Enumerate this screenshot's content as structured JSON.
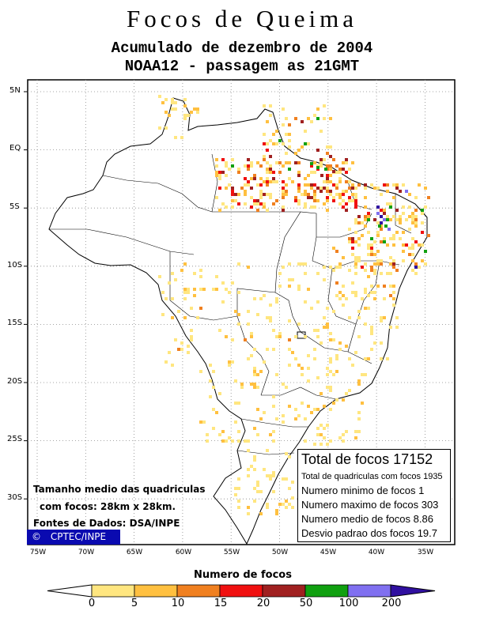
{
  "title": "Focos de Queima",
  "subtitle": "Acumulado de dezembro de 2004",
  "subtitle2": "NOAA12 - passagem as 21GMT",
  "lat_labels": [
    "5N",
    "EQ",
    "5S",
    "10S",
    "15S",
    "20S",
    "25S",
    "30S"
  ],
  "lon_labels": [
    "75W",
    "70W",
    "65W",
    "60W",
    "55W",
    "50W",
    "45W",
    "40W",
    "35W"
  ],
  "stats": {
    "total": "Total de focos 17152",
    "quadriculas": "Total de quadriculas com focos 1935",
    "minimo": "Numero minimo de focos 1",
    "maximo": "Numero maximo de focos 303",
    "medio": "Numero medio de focos 8.86",
    "desvio": "Desvio padrao dos focos 19.7"
  },
  "notes": {
    "tamanho1": "Tamanho medio das quadriculas",
    "tamanho2": "com focos: 28km x 28km.",
    "fontes": "Fontes de Dados: DSA/INPE",
    "credit": "CPTEC/INPE"
  },
  "legend": {
    "title": "Numero de focos",
    "labels": [
      "0",
      "5",
      "10",
      "15",
      "20",
      "50",
      "100",
      "200"
    ],
    "colors": [
      "#ffe680",
      "#ffc040",
      "#f08020",
      "#f01010",
      "#a02020",
      "#10a010",
      "#8070f0",
      "#3010a0"
    ]
  },
  "colors": {
    "credit_bg": "#0a0ab0",
    "grid": "#888888"
  }
}
